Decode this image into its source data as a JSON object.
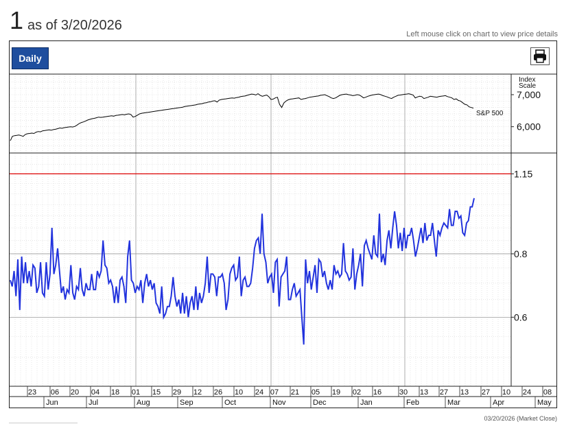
{
  "header": {
    "value": "1",
    "as_of": "as of 3/20/2026",
    "hint": "Left mouse click on chart to view price details"
  },
  "toolbar": {
    "daily_label": "Daily",
    "print_icon": "printer-icon"
  },
  "footer": {
    "text": "03/20/2026 (Market Close)"
  },
  "colors": {
    "ratio_line": "#2233dd",
    "index_line": "#000000",
    "reference_line": "#dd0000",
    "button": "#1f4e9e"
  },
  "chart_data": [
    {
      "type": "line",
      "title": "",
      "axis_title": "Index\nScale",
      "series": [
        {
          "name": "S&P 500",
          "values": [
            5560,
            5700,
            5720,
            5730,
            5740,
            5720,
            5700,
            5760,
            5780,
            5790,
            5800,
            5790,
            5830,
            5850,
            5840,
            5870,
            5880,
            5890,
            5900,
            5890,
            5910,
            5920,
            5940,
            5960,
            5950,
            5970,
            5980,
            5990,
            6000,
            5990,
            6010,
            6050,
            6100,
            6130,
            6150,
            6180,
            6210,
            6230,
            6250,
            6260,
            6280,
            6300,
            6290,
            6300,
            6310,
            6320,
            6330,
            6340,
            6330,
            6350,
            6360,
            6370,
            6380,
            6370,
            6390,
            6400,
            6380,
            6300,
            6320,
            6360,
            6400,
            6420,
            6430,
            6440,
            6450,
            6460,
            6470,
            6480,
            6490,
            6500,
            6510,
            6520,
            6530,
            6540,
            6550,
            6560,
            6570,
            6580,
            6590,
            6600,
            6610,
            6630,
            6640,
            6650,
            6660,
            6670,
            6680,
            6700,
            6710,
            6720,
            6740,
            6750,
            6770,
            6780,
            6800,
            6810,
            6770,
            6830,
            6850,
            6860,
            6870,
            6880,
            6890,
            6900,
            6890,
            6910,
            6920,
            6940,
            6950,
            6960,
            6980,
            7000,
            7020,
            7010,
            6990,
            7030,
            6980,
            6950,
            6970,
            6990,
            6940,
            6850,
            6860,
            6900,
            6920,
            6700,
            6600,
            6740,
            6800,
            6840,
            6860,
            6870,
            6880,
            6890,
            6900,
            6850,
            6870,
            6880,
            6900,
            6920,
            6930,
            6940,
            6950,
            6960,
            6980,
            6990,
            7000,
            6970,
            6940,
            6900,
            6880,
            6900,
            6940,
            6980,
            7000,
            7010,
            7020,
            7000,
            6990,
            6970,
            6980,
            7000,
            6990,
            6950,
            6900,
            6920,
            6950,
            6970,
            6990,
            7000,
            7010,
            7020,
            7000,
            6970,
            6950,
            6930,
            6900,
            6880,
            6920,
            6950,
            6980,
            6990,
            7000,
            7010,
            7020,
            7030,
            7010,
            6990,
            6900,
            6930,
            6950,
            6940,
            6880,
            6900,
            6920,
            6950,
            6940,
            6930,
            6920,
            6940,
            6950,
            6960,
            6970,
            6940,
            6920,
            6900,
            6850,
            6870,
            6820,
            6800,
            6750,
            6700,
            6680,
            6620,
            6600,
            6580
          ],
          "ylim": [
            5200,
            7600
          ],
          "ticks": [
            "6,000",
            "7,000"
          ],
          "tick_values": [
            6000,
            7000
          ]
        }
      ]
    },
    {
      "type": "line",
      "title": "",
      "log_scale": true,
      "ylim": [
        0.44,
        1.26
      ],
      "y_ticks": [
        "0.6",
        "0.8",
        "1.15"
      ],
      "y_tick_values": [
        0.6,
        0.8,
        1.15
      ],
      "reference_line": 1.15,
      "x_tick_labels": [
        "23",
        "06",
        "20",
        "04",
        "18",
        "01",
        "15",
        "29",
        "12",
        "26",
        "10",
        "24",
        "07",
        "21",
        "05",
        "19",
        "02",
        "16",
        "30",
        "13",
        "27",
        "13",
        "27",
        "10",
        "24",
        "08"
      ],
      "month_labels": [
        "Jun",
        "Jul",
        "Aug",
        "Sep",
        "Oct",
        "Nov",
        "Dec",
        "Jan",
        "Feb",
        "Mar",
        "Apr",
        "May"
      ],
      "series": [
        {
          "name": "",
          "values": [
            0.71,
            0.69,
            0.74,
            0.66,
            0.78,
            0.62,
            0.79,
            0.7,
            0.77,
            0.7,
            0.74,
            0.69,
            0.76,
            0.75,
            0.67,
            0.69,
            0.77,
            0.67,
            0.66,
            0.77,
            0.68,
            0.73,
            0.9,
            0.73,
            0.76,
            0.82,
            0.74,
            0.67,
            0.69,
            0.65,
            0.68,
            0.67,
            0.76,
            0.67,
            0.65,
            0.69,
            0.68,
            0.75,
            0.68,
            0.66,
            0.7,
            0.68,
            0.68,
            0.73,
            0.68,
            0.68,
            0.74,
            0.72,
            0.74,
            0.85,
            0.76,
            0.75,
            0.7,
            0.71,
            0.69,
            0.64,
            0.69,
            0.64,
            0.71,
            0.72,
            0.69,
            0.64,
            0.79,
            0.85,
            0.71,
            0.7,
            0.67,
            0.69,
            0.68,
            0.71,
            0.64,
            0.7,
            0.73,
            0.69,
            0.71,
            0.68,
            0.7,
            0.64,
            0.63,
            0.61,
            0.69,
            0.6,
            0.61,
            0.63,
            0.63,
            0.66,
            0.72,
            0.66,
            0.63,
            0.65,
            0.61,
            0.67,
            0.61,
            0.66,
            0.6,
            0.64,
            0.66,
            0.62,
            0.69,
            0.62,
            0.67,
            0.64,
            0.66,
            0.7,
            0.79,
            0.67,
            0.73,
            0.73,
            0.72,
            0.66,
            0.72,
            0.72,
            0.73,
            0.7,
            0.62,
            0.65,
            0.73,
            0.75,
            0.76,
            0.71,
            0.72,
            0.79,
            0.66,
            0.71,
            0.72,
            0.69,
            0.69,
            0.7,
            0.75,
            0.82,
            0.85,
            0.86,
            0.8,
            0.96,
            0.8,
            0.77,
            0.7,
            0.72,
            0.73,
            0.67,
            0.77,
            0.78,
            0.63,
            0.72,
            0.73,
            0.74,
            0.79,
            0.65,
            0.65,
            0.68,
            0.7,
            0.66,
            0.67,
            0.68,
            0.6,
            0.53,
            0.78,
            0.7,
            0.74,
            0.68,
            0.72,
            0.76,
            0.67,
            0.78,
            0.77,
            0.72,
            0.74,
            0.7,
            0.68,
            0.71,
            0.68,
            0.76,
            0.73,
            0.74,
            0.72,
            0.73,
            0.84,
            0.74,
            0.73,
            0.71,
            0.72,
            0.82,
            0.68,
            0.73,
            0.76,
            0.8,
            0.69,
            0.83,
            0.85,
            0.82,
            0.8,
            0.78,
            0.87,
            0.8,
            0.79,
            0.96,
            0.77,
            0.8,
            0.76,
            0.85,
            0.89,
            0.82,
            0.9,
            0.97,
            0.91,
            0.82,
            0.88,
            0.81,
            0.9,
            0.82,
            0.87,
            0.87,
            0.9,
            0.85,
            0.79,
            0.82,
            0.86,
            0.9,
            0.84,
            0.92,
            0.85,
            0.87,
            0.87,
            0.92,
            0.85,
            0.79,
            0.89,
            0.87,
            0.9,
            0.92,
            0.91,
            0.9,
            0.98,
            0.91,
            0.91,
            0.97,
            0.97,
            0.94,
            0.95,
            0.88,
            0.87,
            0.92,
            0.93,
            0.99,
            0.99,
            1.03
          ]
        }
      ]
    }
  ]
}
